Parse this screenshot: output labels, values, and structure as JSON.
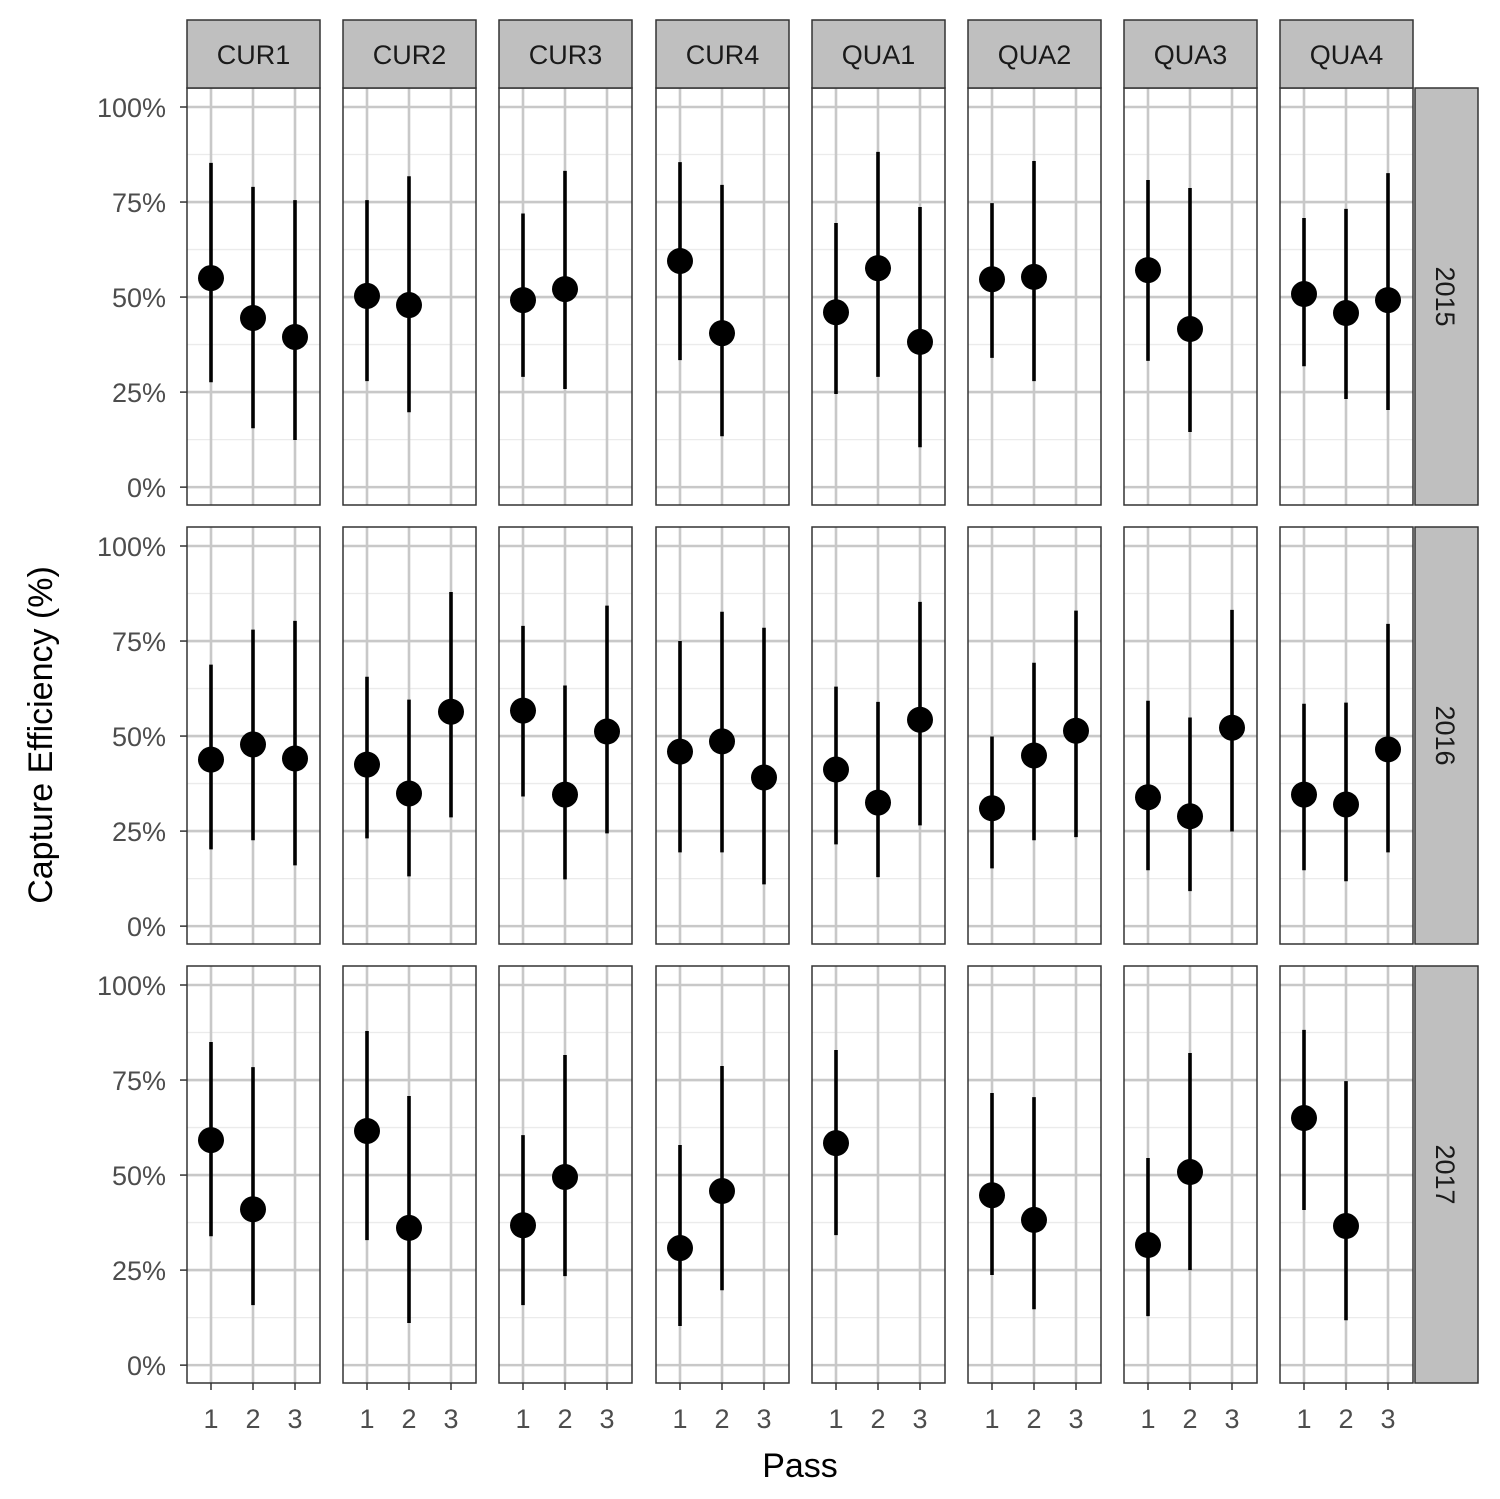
{
  "chart_data": {
    "type": "scatter",
    "subtype": "pointrange-facet",
    "xlabel": "Pass",
    "ylabel": "Capture Efficiency (%)",
    "ylim": [
      0,
      100
    ],
    "yticks": [
      "0%",
      "25%",
      "50%",
      "75%",
      "100%"
    ],
    "ytick_values": [
      0,
      25,
      50,
      75,
      100
    ],
    "xticks": [
      "1",
      "2",
      "3"
    ],
    "xtick_values": [
      1,
      2,
      3
    ],
    "columns": [
      "CUR1",
      "CUR2",
      "CUR3",
      "CUR4",
      "QUA1",
      "QUA2",
      "QUA3",
      "QUA4"
    ],
    "rows": [
      "2015",
      "2016",
      "2017"
    ],
    "panels": {
      "2015": {
        "CUR1": [
          [
            1,
            55,
            27.6,
            85.3
          ],
          [
            2,
            44.5,
            15.5,
            79
          ],
          [
            3,
            39.5,
            12.4,
            75.5
          ]
        ],
        "CUR2": [
          [
            1,
            50.3,
            27.9,
            75.5
          ],
          [
            2,
            47.9,
            19.7,
            81.8
          ]
        ],
        "CUR3": [
          [
            1,
            49.2,
            29,
            72
          ],
          [
            2,
            52.1,
            25.8,
            83.2
          ]
        ],
        "CUR4": [
          [
            1,
            59.5,
            33.4,
            85.5
          ],
          [
            2,
            40.5,
            13.4,
            79.5
          ]
        ],
        "QUA1": [
          [
            1,
            46,
            24.5,
            69.5
          ],
          [
            2,
            57.6,
            29,
            88.2
          ],
          [
            3,
            38.2,
            10.5,
            73.7
          ]
        ],
        "QUA2": [
          [
            1,
            54.7,
            34,
            74.7
          ],
          [
            2,
            55.3,
            27.9,
            85.8
          ]
        ],
        "QUA3": [
          [
            1,
            57.1,
            33.2,
            80.8
          ],
          [
            2,
            41.6,
            14.5,
            78.7
          ]
        ],
        "QUA4": [
          [
            1,
            50.8,
            31.8,
            70.8
          ],
          [
            2,
            45.8,
            23.2,
            73.2
          ],
          [
            3,
            49.2,
            20.3,
            82.6
          ]
        ]
      },
      "2016": {
        "CUR1": [
          [
            1,
            43.8,
            20.2,
            68.8
          ],
          [
            2,
            47.8,
            22.6,
            78
          ],
          [
            3,
            44.1,
            16,
            80.3
          ]
        ],
        "CUR2": [
          [
            1,
            42.5,
            23.1,
            65.6
          ],
          [
            2,
            34.9,
            13.1,
            59.6
          ],
          [
            3,
            56.4,
            28.6,
            87.9
          ]
        ],
        "CUR3": [
          [
            1,
            56.7,
            34.1,
            79
          ],
          [
            2,
            34.6,
            12.3,
            63.3
          ],
          [
            3,
            51.2,
            24.4,
            84.3
          ]
        ],
        "CUR4": [
          [
            1,
            45.9,
            19.4,
            75
          ],
          [
            2,
            48.6,
            19.4,
            82.7
          ],
          [
            3,
            39.1,
            11,
            78.5
          ]
        ],
        "QUA1": [
          [
            1,
            41.2,
            21.5,
            63
          ],
          [
            2,
            32.5,
            12.9,
            59
          ],
          [
            3,
            54.3,
            26.5,
            85.3
          ]
        ],
        "QUA2": [
          [
            1,
            31,
            15.2,
            49.9
          ],
          [
            2,
            44.9,
            22.6,
            69.3
          ],
          [
            3,
            51.4,
            23.4,
            83
          ]
        ],
        "QUA3": [
          [
            1,
            33.9,
            14.7,
            59.3
          ],
          [
            2,
            28.9,
            9.2,
            54.9
          ],
          [
            3,
            52.2,
            24.9,
            83.2
          ]
        ],
        "QUA4": [
          [
            1,
            34.6,
            14.7,
            58.5
          ],
          [
            2,
            32,
            11.8,
            58.8
          ],
          [
            3,
            46.5,
            19.4,
            79.5
          ]
        ]
      },
      "2017": {
        "CUR1": [
          [
            1,
            59.2,
            33.9,
            85
          ],
          [
            2,
            41,
            15.8,
            78.4
          ]
        ],
        "CUR2": [
          [
            1,
            61.6,
            32.9,
            87.9
          ],
          [
            2,
            36.1,
            11.1,
            70.8
          ]
        ],
        "CUR3": [
          [
            1,
            36.8,
            15.8,
            60.5
          ],
          [
            2,
            49.5,
            23.4,
            81.6
          ]
        ],
        "CUR4": [
          [
            1,
            30.8,
            10.3,
            57.9
          ],
          [
            2,
            45.8,
            19.7,
            78.7
          ]
        ],
        "QUA1": [
          [
            1,
            58.4,
            34.2,
            82.9
          ]
        ],
        "QUA2": [
          [
            1,
            44.7,
            23.7,
            71.6
          ],
          [
            2,
            38.2,
            14.7,
            70.5
          ]
        ],
        "QUA3": [
          [
            1,
            31.6,
            12.9,
            54.5
          ],
          [
            2,
            50.8,
            25,
            82.1
          ]
        ],
        "QUA4": [
          [
            1,
            65,
            40.8,
            88.2
          ],
          [
            2,
            36.6,
            11.8,
            74.7
          ]
        ]
      }
    },
    "point_format": "[pass, estimate, lower, upper]",
    "grid": true
  }
}
